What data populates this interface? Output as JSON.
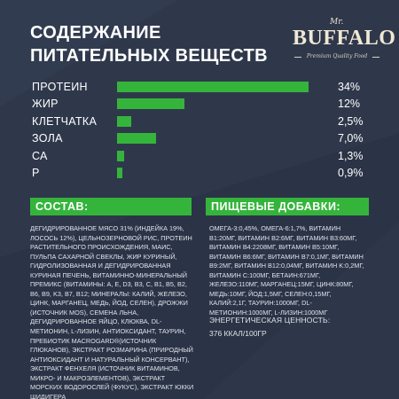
{
  "title": {
    "line1": "СОДЕРЖАНИЕ",
    "line2": "ПИТАТЕЛЬНЫХ ВЕЩЕСТВ"
  },
  "logo": {
    "mr": "Mr.",
    "brand": "BUFFALO",
    "tagline": "Premium Quality Food"
  },
  "colors": {
    "background": "#2b3446",
    "accent_green": "#35b43c",
    "text": "#ffffff"
  },
  "chart_data": {
    "type": "bar",
    "orientation": "horizontal",
    "categories": [
      "ПРОТЕИН",
      "ЖИР",
      "КЛЕТЧАТКА",
      "ЗОЛА",
      "СА",
      "Р"
    ],
    "values": [
      34,
      12,
      2.5,
      7.0,
      1.3,
      0.9
    ],
    "value_labels": [
      "34%",
      "12%",
      "2,5%",
      "7,0%",
      "1,3%",
      "0,9%"
    ],
    "unit": "%",
    "grid": false,
    "legend": "none"
  },
  "composition": {
    "heading": "СОСТАВ:",
    "text": "Дегидрированное мясо 31% (индейка 19%, лосось 12%), цельнозерновой рис, протеин растительного происхождения, маис, пульпа сахарной свеклы, жир куриный, гидролизованная и дегидрированная куриная печень, витаминно-минеральный премикс (витамины: A, E, D3, B3, C, B1, B5, B2, B6, B9, K3, B7, B12; минералы: калий, железо, цинк, марганец, медь, йод, селен), дрожжи (источник MOS), семена льна, дегидрированное яйцо, клюква, DL-метионин, L-лизин, антиоксидант, таурин, пребиотик Macrogard®(источник глюканов), экстракт розмарина (природный антиоксидант и натуральный консервант), экстракт фенхеля (источник витаминов, микро- и макроэлементов), экстракт морских водорослей (фукус), экстракт юкки шидигера"
  },
  "additives": {
    "heading": "ПИЩЕВЫЕ ДОБАВКИ:",
    "text": "Омега-3:0,45%, Омега-6:1,7%, Витамин B1:20мг, Витамин B2:6мг, Витамин B3:60мг, Витамин B4:2208мг, Витамин B5:10мг, Витамин B6:6мг, Витамин B7:0,1мг, Витамин B9:2мг, Витамин B12:0,04мг, Витамин K:0,2мг, Витамин C:100мг, Бетаин:671мг, Железо:110мг, Марганец:15мг, Цинк:80мг, Медь:10мг, Йод:1,5мг, Селен:0,15мг, Калий:2,1г, Таурин:1000мг, DL-Метионин:1000мг, L-лизин:1000мг"
  },
  "energy": {
    "label": "ЭНЕРГЕТИЧЕСКАЯ ЦЕННОСТЬ:",
    "value": "376 ККАЛ/100ГР"
  }
}
